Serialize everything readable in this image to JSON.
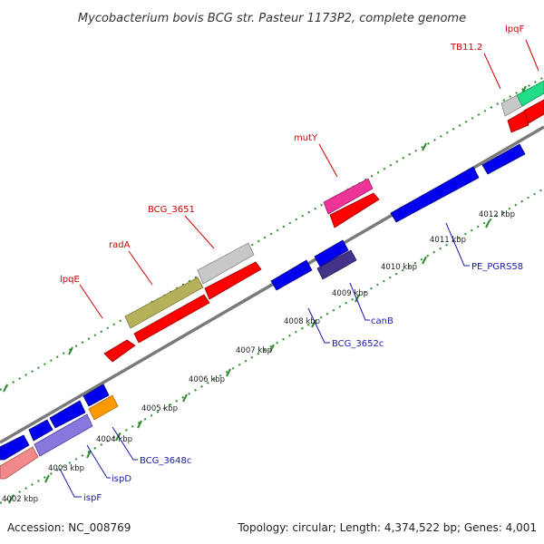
{
  "title": "Mycobacterium bovis BCG str. Pasteur 1173P2, complete genome",
  "footer": {
    "accession": "Accession: NC_008769",
    "summary": "Topology: circular; Length: 4,374,522 bp; Genes: 4,001"
  },
  "axis": {
    "tick_labels": [
      "4002 kbp",
      "4003 kbp",
      "4004 kbp",
      "4005 kbp",
      "4006 kbp",
      "4007 kbp",
      "4008 kbp",
      "4009 kbp",
      "4010 kbp",
      "4011 kbp",
      "4012 kbp"
    ]
  },
  "colors": {
    "forward_label": "#cc0000",
    "reverse_label": "#1a1aaa",
    "backbone": "#7a7a7a",
    "ruler_ticks": "#2e8b2e"
  },
  "genes_forward_labels": [
    "lpqE",
    "radA",
    "BCG_3651",
    "mutY",
    "TB11.2",
    "lpqF"
  ],
  "genes_reverse_labels": [
    "ispF",
    "ispD",
    "BCG_3648c",
    "BCG_3652c",
    "canB",
    "PE_PGRS58"
  ]
}
